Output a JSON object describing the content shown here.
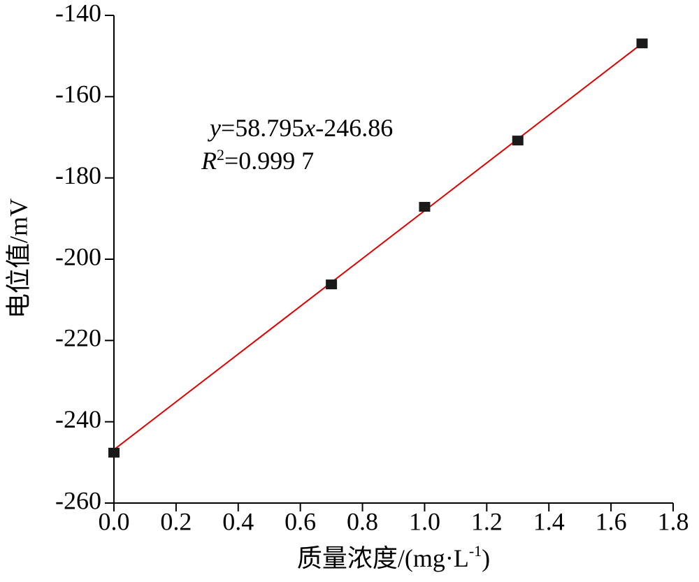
{
  "chart_data": {
    "type": "scatter",
    "x_label_parts": [
      "质量浓度/(mg·L",
      "-1",
      ")"
    ],
    "y_label": "电位值/mV",
    "x": [
      0,
      0.7,
      1.0,
      1.3,
      1.7
    ],
    "values": [
      -247.6,
      -206.2,
      -187.1,
      -170.8,
      -146.9
    ],
    "color": "#1a1a1a",
    "fit": {
      "slope": 58.795,
      "intercept": -246.86,
      "color": "#e00000"
    },
    "equation_parts": [
      "y",
      "=58.795",
      "x",
      "-246.86"
    ],
    "r2_parts": [
      "R",
      "2",
      "=0.999 7"
    ],
    "xlim": [
      0,
      1.8
    ],
    "ylim": [
      -260,
      -140
    ],
    "xticks": [
      {
        "value": 0,
        "label": "0.0"
      },
      {
        "value": 0.2,
        "label": "0.2"
      },
      {
        "value": 0.4,
        "label": "0.4"
      },
      {
        "value": 0.6,
        "label": "0.6"
      },
      {
        "value": 0.8,
        "label": "0.8"
      },
      {
        "value": 1.0,
        "label": "1.0"
      },
      {
        "value": 1.2,
        "label": "1.2"
      },
      {
        "value": 1.4,
        "label": "1.4"
      },
      {
        "value": 1.6,
        "label": "1.6"
      },
      {
        "value": 1.8,
        "label": "1.8"
      }
    ],
    "yticks": [
      -260,
      -240,
      -220,
      -200,
      -180,
      -160,
      -140
    ],
    "grid": false
  }
}
